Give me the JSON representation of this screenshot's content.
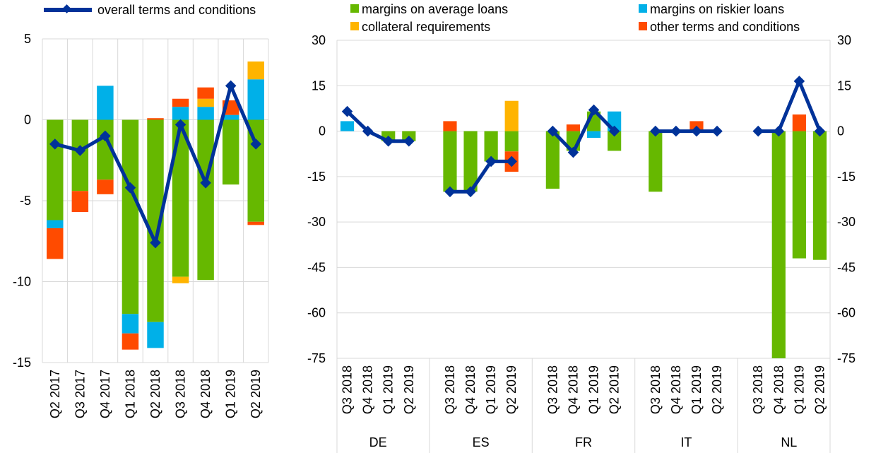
{
  "colors": {
    "margins_avg": "#66B800",
    "margins_risk": "#00B0E8",
    "collateral": "#FFB400",
    "other": "#FF4B00",
    "overall": "#003299",
    "grid": "#D9D9D9"
  },
  "legend": {
    "overall": "overall terms and conditions",
    "margins_avg": "margins on average loans",
    "margins_risk": "margins on riskier loans",
    "collateral": "collateral requirements",
    "other": "other terms and conditions"
  },
  "chart_data": [
    {
      "type": "bar",
      "stacked": true,
      "ylim": [
        -15,
        5
      ],
      "yticks": [
        5,
        0,
        -5,
        -10,
        -15
      ],
      "categories": [
        "Q2 2017",
        "Q3 2017",
        "Q4 2017",
        "Q1 2018",
        "Q2 2018",
        "Q3 2018",
        "Q4 2018",
        "Q1 2019",
        "Q2 2019"
      ],
      "series": [
        {
          "key": "margins_avg",
          "values": [
            -6.2,
            -4.4,
            -3.7,
            -12.0,
            -12.5,
            -9.7,
            -9.9,
            -4.0,
            -6.3
          ]
        },
        {
          "key": "margins_risk",
          "values": [
            -0.5,
            0,
            2.1,
            -1.2,
            -1.6,
            0.8,
            0.8,
            0.3,
            2.5
          ]
        },
        {
          "key": "collateral",
          "values": [
            0,
            0,
            0,
            0,
            0,
            -0.4,
            0.5,
            0,
            1.1
          ]
        },
        {
          "key": "other",
          "values": [
            -1.9,
            -1.3,
            -0.9,
            -1.0,
            0.1,
            0.5,
            0.7,
            0.9,
            -0.2
          ]
        }
      ],
      "line": {
        "key": "overall",
        "values": [
          -1.5,
          -1.9,
          -1.0,
          -4.2,
          -7.6,
          -0.3,
          -3.9,
          2.1,
          -1.5
        ]
      }
    },
    {
      "type": "bar",
      "stacked": true,
      "ylim": [
        -75,
        30
      ],
      "yticks": [
        30,
        15,
        0,
        -15,
        -30,
        -45,
        -60,
        -75
      ],
      "groups": [
        {
          "name": "DE",
          "categories": [
            "Q3 2018",
            "Q4 2018",
            "Q1 2019",
            "Q2 2019"
          ],
          "series": {
            "margins_avg": [
              0,
              0,
              -3.3,
              -3.3
            ],
            "margins_risk": [
              3.3,
              0,
              0,
              0
            ],
            "collateral": [
              0,
              0,
              0,
              0
            ],
            "other": [
              0,
              0,
              0,
              0
            ]
          },
          "line": [
            6.5,
            0,
            -3.3,
            -3.3
          ]
        },
        {
          "name": "ES",
          "categories": [
            "Q3 2018",
            "Q4 2018",
            "Q1 2019",
            "Q2 2019"
          ],
          "series": {
            "margins_avg": [
              -20,
              -20,
              -10,
              -6.7
            ],
            "margins_risk": [
              0,
              0,
              0,
              0
            ],
            "collateral": [
              0,
              0,
              0,
              10
            ],
            "other": [
              3.3,
              0,
              0,
              -6.7
            ]
          },
          "line": [
            -20,
            -20,
            -10,
            -10
          ]
        },
        {
          "name": "FR",
          "categories": [
            "Q3 2018",
            "Q4 2018",
            "Q1 2019",
            "Q2 2019"
          ],
          "series": {
            "margins_avg": [
              -19,
              -6.5,
              6.5,
              -6.5
            ],
            "margins_risk": [
              0,
              0,
              -2.2,
              6.5
            ],
            "collateral": [
              0,
              0,
              0,
              0
            ],
            "other": [
              0,
              2.2,
              0,
              0
            ]
          },
          "line": [
            0,
            -7,
            7,
            0
          ]
        },
        {
          "name": "IT",
          "categories": [
            "Q3 2018",
            "Q4 2018",
            "Q1 2019",
            "Q2 2019"
          ],
          "series": {
            "margins_avg": [
              -20,
              0,
              0,
              0
            ],
            "margins_risk": [
              0,
              0,
              0,
              0
            ],
            "collateral": [
              0,
              0,
              0,
              0
            ],
            "other": [
              0,
              0,
              3.3,
              0
            ]
          },
          "line": [
            0,
            0,
            0,
            0
          ]
        },
        {
          "name": "NL",
          "categories": [
            "Q3 2018",
            "Q4 2018",
            "Q1 2019",
            "Q2 2019"
          ],
          "series": {
            "margins_avg": [
              0,
              -75,
              -42,
              -42.5
            ],
            "margins_risk": [
              0,
              0,
              0,
              0
            ],
            "collateral": [
              0,
              0,
              0,
              0
            ],
            "other": [
              0,
              0,
              5.5,
              0
            ]
          },
          "line": [
            0,
            0,
            16.5,
            0
          ]
        }
      ]
    }
  ]
}
